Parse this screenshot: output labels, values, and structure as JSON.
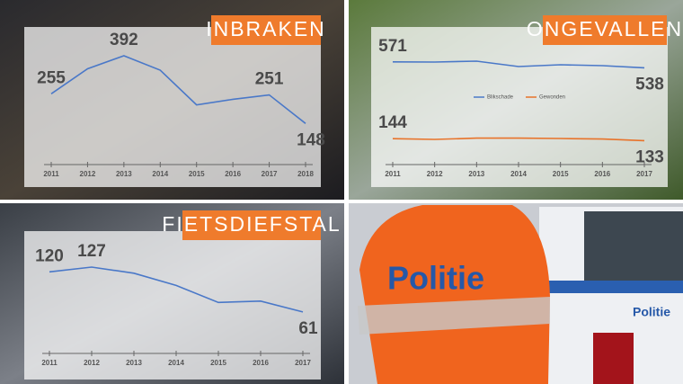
{
  "chart_data": [
    {
      "type": "line",
      "title": "INBRAKEN",
      "categories": [
        "2011",
        "2012",
        "2013",
        "2014",
        "2015",
        "2016",
        "2017",
        "2018"
      ],
      "values": [
        255,
        345,
        392,
        340,
        215,
        235,
        251,
        148
      ],
      "value_labels": [
        "255",
        null,
        "392",
        null,
        null,
        null,
        "251",
        "148"
      ],
      "color": "#4a78c8"
    },
    {
      "type": "line",
      "title": "ONGEVALLEN",
      "categories": [
        "2011",
        "2012",
        "2013",
        "2014",
        "2015",
        "2016",
        "2017"
      ],
      "series": [
        {
          "name": "Blikschade",
          "color": "#4a78c8",
          "values": [
            571,
            570,
            575,
            545,
            555,
            550,
            538
          ],
          "value_labels": [
            "571",
            null,
            null,
            null,
            null,
            null,
            "538"
          ]
        },
        {
          "name": "Gewonden",
          "color": "#e8732a",
          "values": [
            144,
            140,
            147,
            147,
            145,
            142,
            133
          ],
          "value_labels": [
            "144",
            null,
            null,
            null,
            null,
            null,
            "133"
          ]
        }
      ]
    },
    {
      "type": "line",
      "title": "FIETSDIEFSTAL",
      "categories": [
        "2011",
        "2012",
        "2013",
        "2014",
        "2015",
        "2016",
        "2017"
      ],
      "values": [
        120,
        127,
        118,
        100,
        75,
        77,
        61
      ],
      "value_labels": [
        "120",
        "127",
        null,
        null,
        null,
        null,
        "61"
      ],
      "color": "#4a78c8"
    }
  ],
  "photo": {
    "jacket_text": "Politie",
    "van_text": "Politie"
  }
}
